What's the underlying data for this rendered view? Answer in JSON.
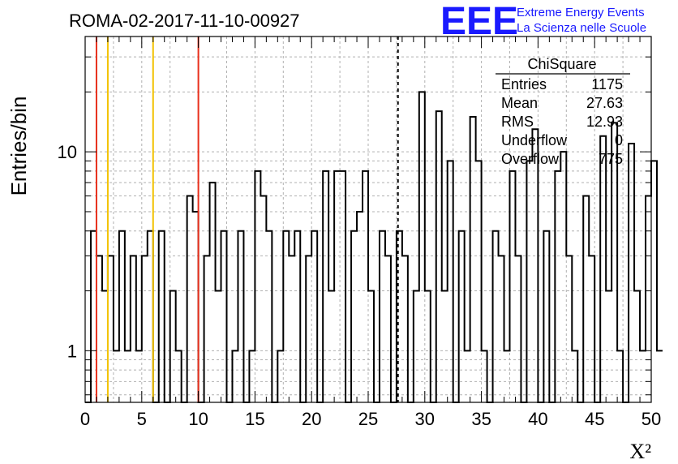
{
  "chart_data": {
    "type": "histogram",
    "title": "ROMA-02-2017-11-10-00927",
    "xlabel": "X²",
    "ylabel": "Entries/bin",
    "xlim": [
      0,
      50
    ],
    "ylim": [
      0.55,
      38
    ],
    "yscale": "log",
    "grid": true,
    "x_ticks": [
      "0",
      "5",
      "10",
      "15",
      "20",
      "25",
      "30",
      "35",
      "40",
      "45",
      "50"
    ],
    "y_ticks": [
      "1",
      "10"
    ],
    "bin_width": 0.5,
    "counts": [
      0,
      4,
      3,
      2,
      3,
      1,
      4,
      1,
      3,
      1,
      3,
      4,
      0,
      4,
      0,
      2,
      1,
      0,
      6,
      5,
      0,
      3,
      7,
      2,
      4,
      0,
      1,
      4,
      0,
      1,
      8,
      6,
      4,
      0,
      1,
      4,
      3,
      4,
      0,
      3,
      4,
      0,
      8,
      2,
      8,
      8,
      0,
      4,
      5,
      8,
      2,
      0,
      4,
      3,
      0,
      4,
      3,
      0,
      2,
      20,
      2,
      0,
      16,
      2,
      9,
      0,
      4,
      1,
      15,
      9,
      1,
      0,
      4,
      3,
      1,
      8,
      3,
      0,
      9,
      13,
      0,
      4,
      0,
      8,
      10,
      3,
      1,
      0,
      6,
      3,
      0,
      12,
      2,
      14,
      1,
      0,
      11,
      2,
      1,
      6,
      9,
      1
    ],
    "vertical_lines": [
      {
        "x": 1.0,
        "color": "#e8301c",
        "style": "solid"
      },
      {
        "x": 2.0,
        "color": "#f2c200",
        "style": "solid"
      },
      {
        "x": 6.0,
        "color": "#f2c200",
        "style": "solid"
      },
      {
        "x": 10.0,
        "color": "#e8301c",
        "style": "solid"
      },
      {
        "x": 27.63,
        "color": "#000000",
        "style": "dashed"
      }
    ],
    "stats_box": {
      "title": "ChiSquare",
      "rows": [
        {
          "label": "Entries",
          "value": "1175"
        },
        {
          "label": "Mean",
          "value": "27.63"
        },
        {
          "label": "RMS",
          "value": "12.93"
        },
        {
          "label": "Underflow",
          "value": "0"
        },
        {
          "label": "Overflow",
          "value": "775"
        }
      ]
    }
  },
  "logo": {
    "mark": "EEE",
    "line1": "Extreme Energy Events",
    "line2": "La Scienza nelle Scuole",
    "color": "#1a1aff"
  }
}
